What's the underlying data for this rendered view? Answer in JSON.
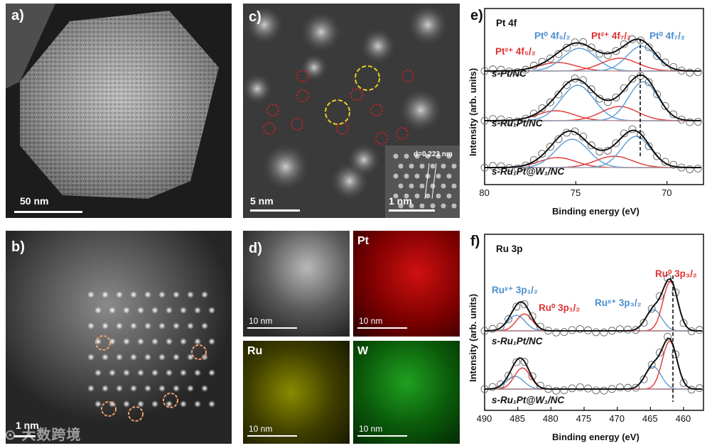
{
  "panel_a": {
    "label": "a)",
    "scale": "50 nm"
  },
  "panel_b": {
    "label": "b)",
    "scale": "1 nm"
  },
  "panel_c": {
    "label": "c)",
    "scale": "5 nm",
    "inset_scale": "1 nm",
    "inset_d": "d=0.223 nm"
  },
  "panel_d": {
    "label": "d)",
    "tiles": [
      {
        "title": "",
        "scale": "10 nm"
      },
      {
        "title": "Pt",
        "scale": "10 nm"
      },
      {
        "title": "Ru",
        "scale": "10 nm"
      },
      {
        "title": "W",
        "scale": "10 nm"
      }
    ]
  },
  "panel_e": {
    "label": "e)",
    "element": "Pt 4f",
    "xlabel": "Binding energy (eV)",
    "ylabel": "Intensity (arb. units)",
    "x_ticks": [
      "80",
      "75",
      "70"
    ],
    "peaks": {
      "pt0_52": "Pt⁰ 4f₅/₂",
      "pt2_72": "Pt²⁺ 4f₇/₂",
      "pt0_72": "Pt⁰ 4f₇/₂",
      "pt2_52": "Pt²⁺ 4f₅/₂"
    },
    "samples": [
      "s-Pt/NC",
      "s-Ru₁Pt/NC",
      "s-Ru₁Pt@W₁/NC"
    ]
  },
  "panel_f": {
    "label": "f)",
    "element": "Ru 3p",
    "xlabel": "Binding energy (eV)",
    "ylabel": "Intensity (arb. units)",
    "x_ticks": [
      "490",
      "485",
      "480",
      "475",
      "470",
      "465",
      "460"
    ],
    "peaks": {
      "rux_12": "Ruˣ⁺ 3p₁/₂",
      "ru0_12": "Ru⁰ 3p₁/₂",
      "rux_32": "Ruˣ⁺ 3p₃/₂",
      "ru0_32": "Ru⁰ 3p₃/₂"
    },
    "samples": [
      "s-Ru₁Pt/NC",
      "s-Ru₁Pt@W₁/NC"
    ]
  },
  "chart_data": [
    {
      "type": "line",
      "title": "Pt 4f",
      "xlabel": "Binding energy (eV)",
      "ylabel": "Intensity (arb. units)",
      "xlim": [
        80,
        68
      ],
      "x_ticks": [
        80,
        75,
        70
      ],
      "series": [
        {
          "name": "s-Pt/NC",
          "peaks_eV": [
            75.0,
            71.4
          ]
        },
        {
          "name": "s-Ru1Pt/NC",
          "peaks_eV": [
            74.9,
            71.3
          ]
        },
        {
          "name": "s-Ru1Pt@W1/NC",
          "peaks_eV": [
            75.2,
            71.7
          ]
        }
      ],
      "reference_line_eV": 71.4
    },
    {
      "type": "line",
      "title": "Ru 3p",
      "xlabel": "Binding energy (eV)",
      "ylabel": "Intensity (arb. units)",
      "xlim": [
        490,
        457
      ],
      "x_ticks": [
        490,
        485,
        480,
        475,
        470,
        465,
        460
      ],
      "series": [
        {
          "name": "s-Ru1Pt/NC",
          "peaks_eV": [
            484.0,
            462.0
          ]
        },
        {
          "name": "s-Ru1Pt@W1/NC",
          "peaks_eV": [
            484.3,
            462.1
          ]
        }
      ],
      "reference_line_eV": 462.0
    }
  ]
}
